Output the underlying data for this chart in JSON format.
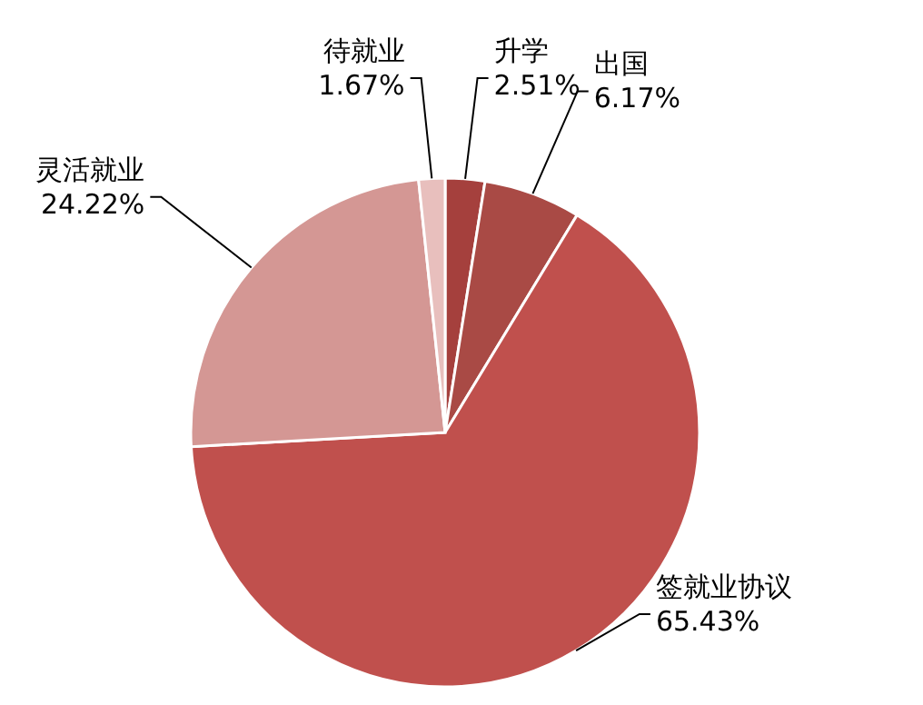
{
  "chart_data": {
    "type": "pie",
    "categories": [
      "升学",
      "出国",
      "签就业协议",
      "灵活就业",
      "待就业"
    ],
    "values": [
      2.51,
      6.17,
      65.43,
      24.22,
      1.67
    ],
    "colors": [
      "#a5403d",
      "#a94a45",
      "#c0504d",
      "#d49794",
      "#e8bfbd"
    ],
    "value_labels": [
      "2.51%",
      "6.17%",
      "65.43%",
      "24.22%",
      "1.67%"
    ],
    "legend": false
  }
}
